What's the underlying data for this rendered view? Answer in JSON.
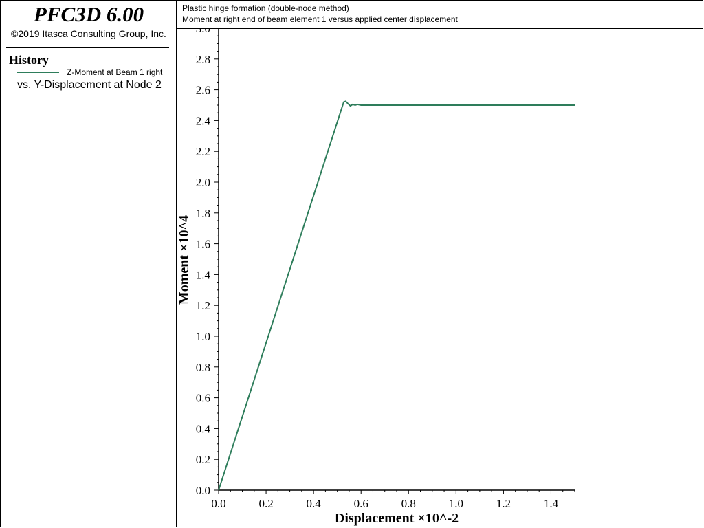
{
  "app": {
    "name": "PFC3D 6.00",
    "copyright": "©2019 Itasca Consulting Group, Inc."
  },
  "legend": {
    "heading": "History",
    "series_label": "Z-Moment at Beam 1 right",
    "vs_label": "vs. Y-Displacement at Node 2"
  },
  "plot_title": {
    "line1": "Plastic hinge formation (double-node method)",
    "line2": "Moment at right end of beam element 1 versus applied center displacement"
  },
  "colors": {
    "series": "#2e7d5b",
    "axis": "#000000"
  },
  "chart_data": {
    "type": "line",
    "xlabel": "Displacement ×10^-2",
    "ylabel": "Moment ×10^4",
    "xlim": [
      0.0,
      1.5
    ],
    "ylim": [
      0.0,
      3.0
    ],
    "x_ticks": [
      "0.0",
      "0.2",
      "0.4",
      "0.6",
      "0.8",
      "1.0",
      "1.2",
      "1.4"
    ],
    "y_ticks": [
      "0.0",
      "0.2",
      "0.4",
      "0.6",
      "0.8",
      "1.0",
      "1.2",
      "1.4",
      "1.6",
      "1.8",
      "2.0",
      "2.2",
      "2.4",
      "2.6",
      "2.8",
      "3.0"
    ],
    "grid": false,
    "series": [
      {
        "name": "Z-Moment at Beam 1 right",
        "x": [
          0.0,
          0.527,
          0.535,
          0.545,
          0.555,
          0.565,
          0.575,
          0.585,
          0.6,
          0.8,
          1.0,
          1.2,
          1.5
        ],
        "y": [
          0.0,
          2.52,
          2.525,
          2.51,
          2.495,
          2.505,
          2.5,
          2.505,
          2.5,
          2.5,
          2.5,
          2.5,
          2.5
        ]
      }
    ]
  }
}
